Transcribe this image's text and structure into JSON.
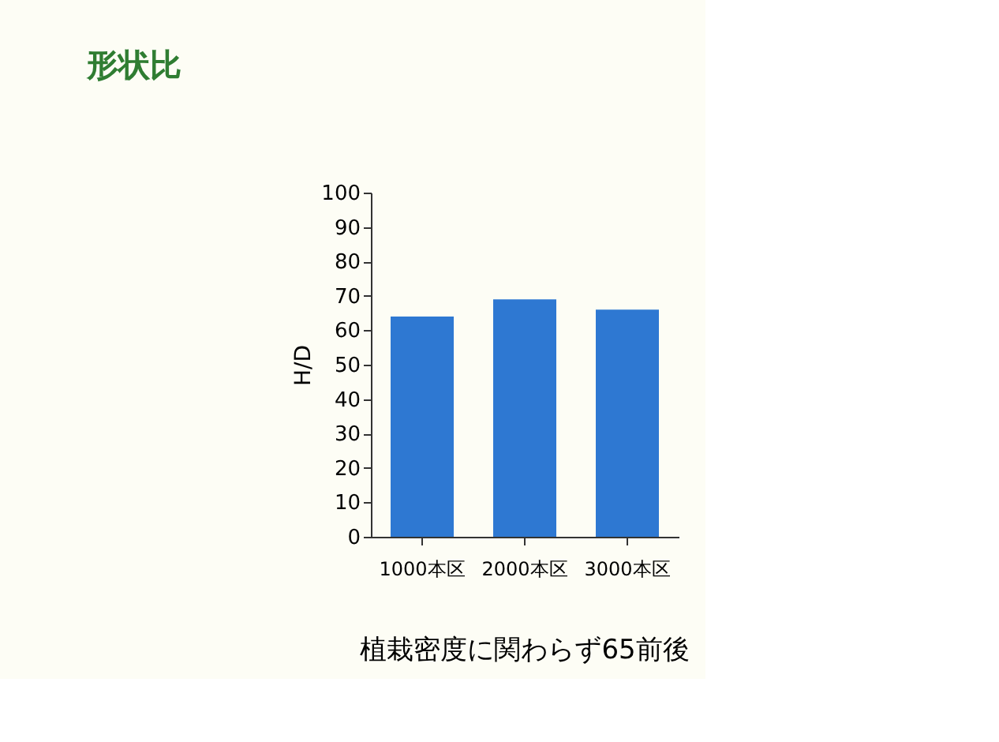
{
  "chart_data": {
    "type": "bar",
    "title": "形状比",
    "ylabel": "H/D",
    "categories": [
      "1000本区",
      "2000本区",
      "3000本区"
    ],
    "values": [
      64,
      69,
      66
    ],
    "color": "#2e78d2",
    "ylim": [
      0,
      100
    ],
    "yticks": [
      0,
      10,
      20,
      30,
      40,
      50,
      60,
      70,
      80,
      90,
      100
    ],
    "grid": false,
    "annotations": [
      "植栽密度に関わらず65前後"
    ]
  }
}
